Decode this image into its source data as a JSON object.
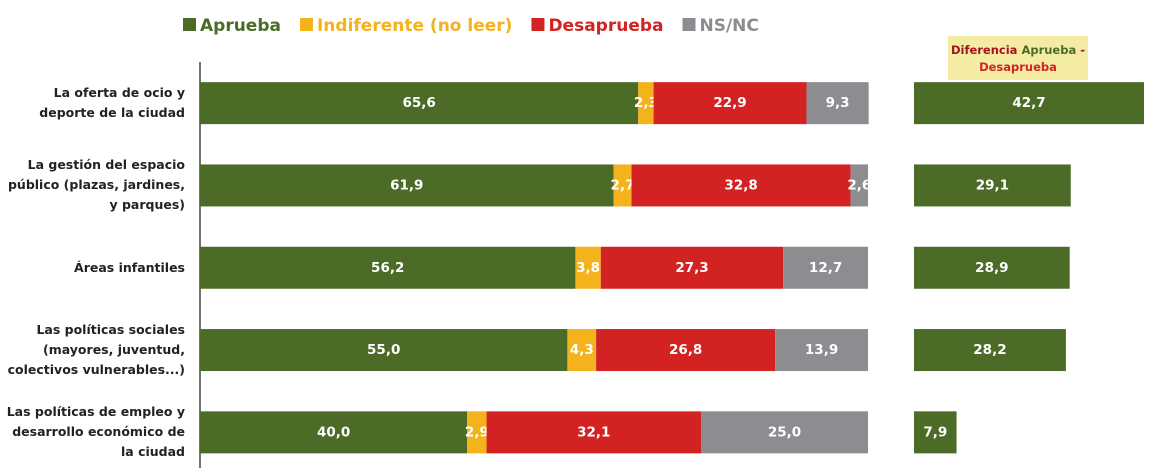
{
  "chart_data": [
    {
      "type": "stacked_bar_h",
      "categories": [
        "La oferta de ocio y\ndeporte de la ciudad",
        "La gestión del espacio\npúblico (plazas, jardines,\ny parques)",
        "Áreas infantiles",
        "Las políticas sociales\n(mayores, juventud,\ncolectivos vulnerables...)",
        "Las políticas de empleo y\ndesarrollo económico de\nla ciudad"
      ],
      "series": [
        {
          "name": "Aprueba",
          "color": "#4b6b27",
          "values": [
            65.6,
            61.9,
            56.2,
            55.0,
            40.0
          ],
          "value_labels": [
            "65,6",
            "61,9",
            "56,2",
            "55,0",
            "40,0"
          ]
        },
        {
          "name": "Indiferente (no leer)",
          "color": "#f4b21d",
          "values": [
            2.3,
            2.7,
            3.8,
            4.3,
            2.9
          ],
          "value_labels": [
            "2,3",
            "2,7",
            "3,8",
            "4,3",
            "2,9"
          ]
        },
        {
          "name": "Desaprueba",
          "color": "#d32222",
          "values": [
            22.9,
            32.8,
            27.3,
            26.8,
            32.1
          ],
          "value_labels": [
            "22,9",
            "32,8",
            "27,3",
            "26,8",
            "32,1"
          ]
        },
        {
          "name": "NS/NC",
          "color": "#8d8c90",
          "values": [
            9.3,
            2.6,
            12.7,
            13.9,
            25.0
          ],
          "value_labels": [
            "9,3",
            "2,6",
            "12,7",
            "13,9",
            "25,0"
          ]
        }
      ],
      "xlim": [
        0,
        100
      ]
    },
    {
      "type": "bar_h",
      "title": [
        {
          "text": "Diferencia",
          "color": "#a3151a"
        },
        {
          "text": "Aprueba",
          "color": "#4b6b27"
        },
        {
          "text": "-",
          "color": "#a3151a"
        },
        {
          "text": "Desaprueba",
          "color": "#d32222"
        }
      ],
      "values": [
        42.7,
        29.1,
        28.9,
        28.2,
        7.9
      ],
      "value_labels": [
        "42,7",
        "29,1",
        "28,9",
        "28,2",
        "7,9"
      ],
      "color": "#4b6b27",
      "xlim": [
        0,
        44
      ]
    }
  ]
}
